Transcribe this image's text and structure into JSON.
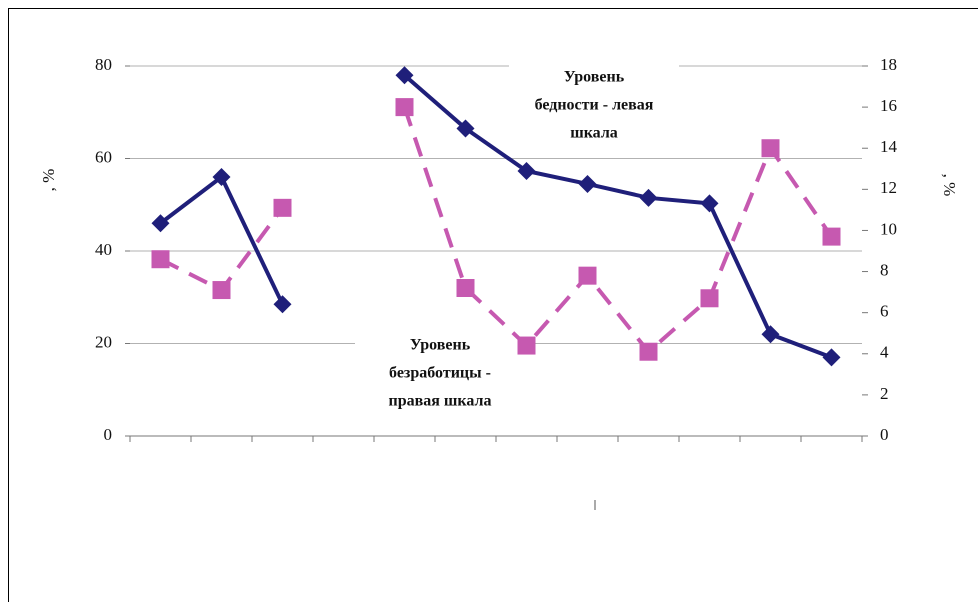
{
  "chart_data": {
    "type": "line",
    "categories": [
      null,
      null,
      null,
      null,
      null,
      null,
      null,
      null,
      null,
      null,
      null,
      null
    ],
    "ylabel": ", %",
    "y2label": ", %",
    "series": [
      {
        "color": "#1f1f7a",
        "marker": "diamond",
        "dash": false,
        "values": [
          46,
          56,
          28.5,
          null,
          78,
          66.5,
          57.3,
          54.5,
          51.5,
          50.3,
          22,
          17
        ]
      },
      {
        "color": "#c659b0",
        "marker": "square",
        "dash": true,
        "axis": "y2",
        "values": [
          8.6,
          7.1,
          11.1,
          null,
          16,
          7.2,
          4.4,
          7.8,
          4.1,
          6.7,
          14,
          9.7
        ]
      }
    ],
    "ylim": [
      0,
      80
    ],
    "yticks": [
      0,
      20,
      40,
      60,
      80
    ],
    "y2lim": [
      0,
      18
    ],
    "y2ticks": [
      0,
      2,
      4,
      6,
      8,
      10,
      12,
      14,
      16,
      18
    ],
    "grid": true,
    "annotations": [
      [
        "Уровень",
        "бедности  - левая",
        "шкала"
      ],
      [
        "Уровень",
        "безработицы -",
        "правая шкала"
      ]
    ]
  }
}
